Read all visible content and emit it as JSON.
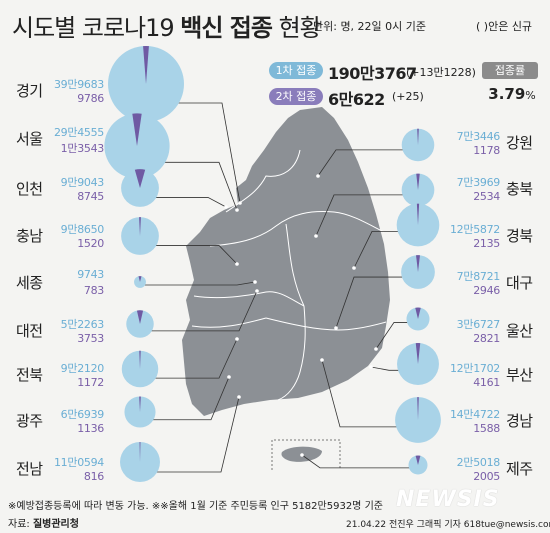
{
  "header": {
    "title_part1": "시도별 코로나19 ",
    "title_part2": "백신 접종",
    "title_part3": " 현황",
    "unit": "단위: 명, 22일 0시 기준",
    "paren_note": "( )안은 신규"
  },
  "summary": {
    "first_label": "1차 접종",
    "first_total": "190만3767",
    "first_new": "(+13만1228)",
    "second_label": "2차 접종",
    "second_total": "6만622",
    "second_new": "(+25)",
    "rate_label": "접종률",
    "rate_value": "3.79",
    "rate_unit": "%"
  },
  "colors": {
    "first_dose": "#a9d3e8",
    "second_dose": "#6f5aa3",
    "map": "#8c9095",
    "text_first": "#6aaed4",
    "text_second": "#7a5fa8"
  },
  "chart_data": {
    "type": "pie",
    "series": [
      {
        "name": "1차 접종"
      },
      {
        "name": "2차 접종"
      }
    ],
    "regions": [
      {
        "name": "경기",
        "first": "39만9683",
        "second": "9786",
        "first_value": 399683,
        "second_value": 9786
      },
      {
        "name": "서울",
        "first": "29만4555",
        "second": "1만3543",
        "first_value": 294555,
        "second_value": 13543
      },
      {
        "name": "인천",
        "first": "9만9043",
        "second": "8745",
        "first_value": 99043,
        "second_value": 8745
      },
      {
        "name": "충남",
        "first": "9만8650",
        "second": "1520",
        "first_value": 98650,
        "second_value": 1520
      },
      {
        "name": "세종",
        "first": "9743",
        "second": "783",
        "first_value": 9743,
        "second_value": 783
      },
      {
        "name": "대전",
        "first": "5만2263",
        "second": "3753",
        "first_value": 52263,
        "second_value": 3753
      },
      {
        "name": "전북",
        "first": "9만2120",
        "second": "1172",
        "first_value": 92120,
        "second_value": 1172
      },
      {
        "name": "광주",
        "first": "6만6939",
        "second": "1136",
        "first_value": 66939,
        "second_value": 1136
      },
      {
        "name": "전남",
        "first": "11만0594",
        "second": "816",
        "first_value": 110594,
        "second_value": 816
      },
      {
        "name": "강원",
        "first": "7만3446",
        "second": "1178",
        "first_value": 73446,
        "second_value": 1178
      },
      {
        "name": "충북",
        "first": "7만3969",
        "second": "2534",
        "first_value": 73969,
        "second_value": 2534
      },
      {
        "name": "경북",
        "first": "12만5872",
        "second": "2135",
        "first_value": 125872,
        "second_value": 2135
      },
      {
        "name": "대구",
        "first": "7만8721",
        "second": "2946",
        "first_value": 78721,
        "second_value": 2946
      },
      {
        "name": "울산",
        "first": "3만6727",
        "second": "2821",
        "first_value": 36727,
        "second_value": 2821
      },
      {
        "name": "부산",
        "first": "12만1702",
        "second": "4161",
        "first_value": 121702,
        "second_value": 4161
      },
      {
        "name": "경남",
        "first": "14만4722",
        "second": "1588",
        "first_value": 144722,
        "second_value": 1588
      },
      {
        "name": "제주",
        "first": "2만5018",
        "second": "2005",
        "first_value": 25018,
        "second_value": 2005
      }
    ]
  },
  "footer": {
    "footnote": "※예방접종등록에 따라 변동 가능. ※※올해 1월 기준 주민등록 인구 5182만5932명 기준",
    "source_label": "자료: ",
    "source": "질병관리청",
    "credit": "21.04.22 전진우 그래픽 기자 618tue@newsis.com",
    "logo": "NEWSIS"
  }
}
